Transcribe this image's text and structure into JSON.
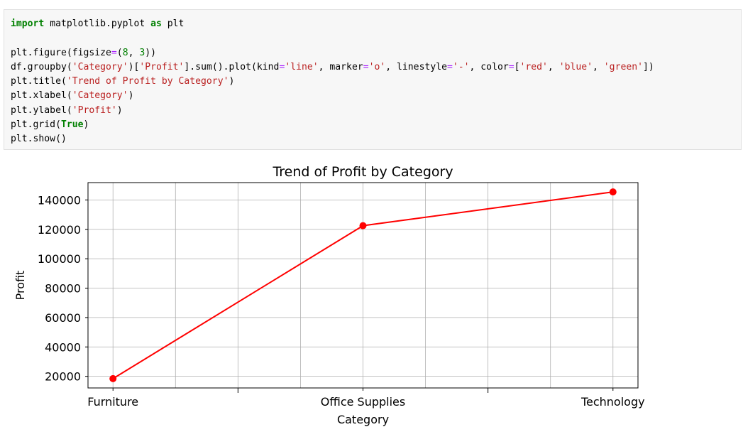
{
  "code_cell": {
    "lines": [
      [
        {
          "t": "import",
          "c": "kw"
        },
        {
          "t": " matplotlib.pyplot "
        },
        {
          "t": "as",
          "c": "kw"
        },
        {
          "t": " plt"
        }
      ],
      [],
      [
        {
          "t": "plt.figure(figsize"
        },
        {
          "t": "=",
          "c": "op"
        },
        {
          "t": "("
        },
        {
          "t": "8",
          "c": "num"
        },
        {
          "t": ", "
        },
        {
          "t": "3",
          "c": "num"
        },
        {
          "t": "))"
        }
      ],
      [
        {
          "t": "df.groupby("
        },
        {
          "t": "'Category'",
          "c": "str"
        },
        {
          "t": ")["
        },
        {
          "t": "'Profit'",
          "c": "str"
        },
        {
          "t": "].sum().plot(kind"
        },
        {
          "t": "=",
          "c": "op"
        },
        {
          "t": "'line'",
          "c": "str"
        },
        {
          "t": ", marker"
        },
        {
          "t": "=",
          "c": "op"
        },
        {
          "t": "'o'",
          "c": "str"
        },
        {
          "t": ", linestyle"
        },
        {
          "t": "=",
          "c": "op"
        },
        {
          "t": "'-'",
          "c": "str"
        },
        {
          "t": ", color"
        },
        {
          "t": "=",
          "c": "op"
        },
        {
          "t": "["
        },
        {
          "t": "'red'",
          "c": "str"
        },
        {
          "t": ", "
        },
        {
          "t": "'blue'",
          "c": "str"
        },
        {
          "t": ", "
        },
        {
          "t": "'green'",
          "c": "str"
        },
        {
          "t": "])"
        }
      ],
      [
        {
          "t": "plt.title("
        },
        {
          "t": "'Trend of Profit by Category'",
          "c": "str"
        },
        {
          "t": ")"
        }
      ],
      [
        {
          "t": "plt.xlabel("
        },
        {
          "t": "'Category'",
          "c": "str"
        },
        {
          "t": ")"
        }
      ],
      [
        {
          "t": "plt.ylabel("
        },
        {
          "t": "'Profit'",
          "c": "str"
        },
        {
          "t": ")"
        }
      ],
      [
        {
          "t": "plt.grid("
        },
        {
          "t": "True",
          "c": "kw"
        },
        {
          "t": ")"
        }
      ],
      [
        {
          "t": "plt.show()"
        }
      ]
    ]
  },
  "chart_data": {
    "type": "line",
    "title": "Trend of Profit by Category",
    "xlabel": "Category",
    "ylabel": "Profit",
    "categories": [
      "Furniture",
      "Office Supplies",
      "Technology"
    ],
    "values": [
      18451,
      122491,
      145455
    ],
    "yticks": [
      20000,
      40000,
      60000,
      80000,
      100000,
      120000,
      140000
    ],
    "ylim": [
      12100,
      151800
    ],
    "xlim": [
      -0.1,
      2.1
    ],
    "x_minor_ticks": [
      0.5,
      1.0,
      1.5
    ],
    "x_major_ticks": [
      0,
      1,
      2
    ],
    "grid": true,
    "line_color": "#ff0000",
    "marker": "o"
  }
}
